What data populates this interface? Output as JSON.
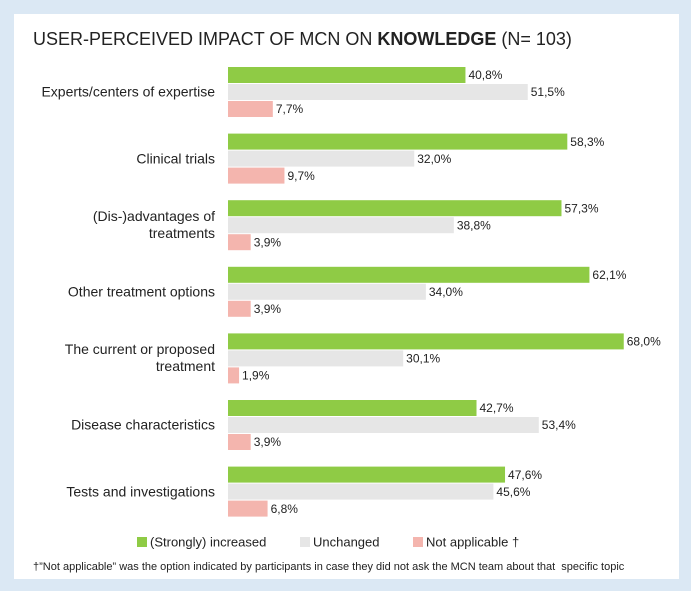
{
  "chart_data": {
    "type": "hbar",
    "title": [
      "USER-PERCEIVED IMPACT OF MCN ON ",
      "KNOWLEDGE",
      " (N= 103)"
    ],
    "categories": [
      "Experts/centers of expertise",
      "Clinical trials",
      "(Dis-)advantages of\ntreatments",
      "Other treatment options",
      "The current or proposed\ntreatment",
      "Disease characteristics",
      "Tests and investigations"
    ],
    "series": [
      {
        "name": "(Strongly) increased",
        "color": "#8fcb45",
        "values": [
          40.8,
          58.3,
          57.3,
          62.1,
          68.0,
          42.7,
          47.6
        ],
        "value_labels": [
          "40,8%",
          "58,3%",
          "57,3%",
          "62,1%",
          "68,0%",
          "42,7%",
          "47,6%"
        ]
      },
      {
        "name": "Unchanged",
        "color": "#e6e6e6",
        "values": [
          51.5,
          32.0,
          38.8,
          34.0,
          30.1,
          53.4,
          45.6
        ],
        "value_labels": [
          "51,5%",
          "32,0%",
          "38,8%",
          "34,0%",
          "30,1%",
          "53,4%",
          "45,6%"
        ]
      },
      {
        "name": "Not applicable †",
        "color": "#f4b5ae",
        "values": [
          7.7,
          9.7,
          3.9,
          3.9,
          1.9,
          3.9,
          6.8
        ],
        "value_labels": [
          "7,7%",
          "9,7%",
          "3,9%",
          "3,9%",
          "1,9%",
          "3,9%",
          "6,8%"
        ]
      }
    ],
    "footnote": "†”Not applicable” was the option indicated by participants in case they did not ask the MCN team about that  specific topic"
  }
}
